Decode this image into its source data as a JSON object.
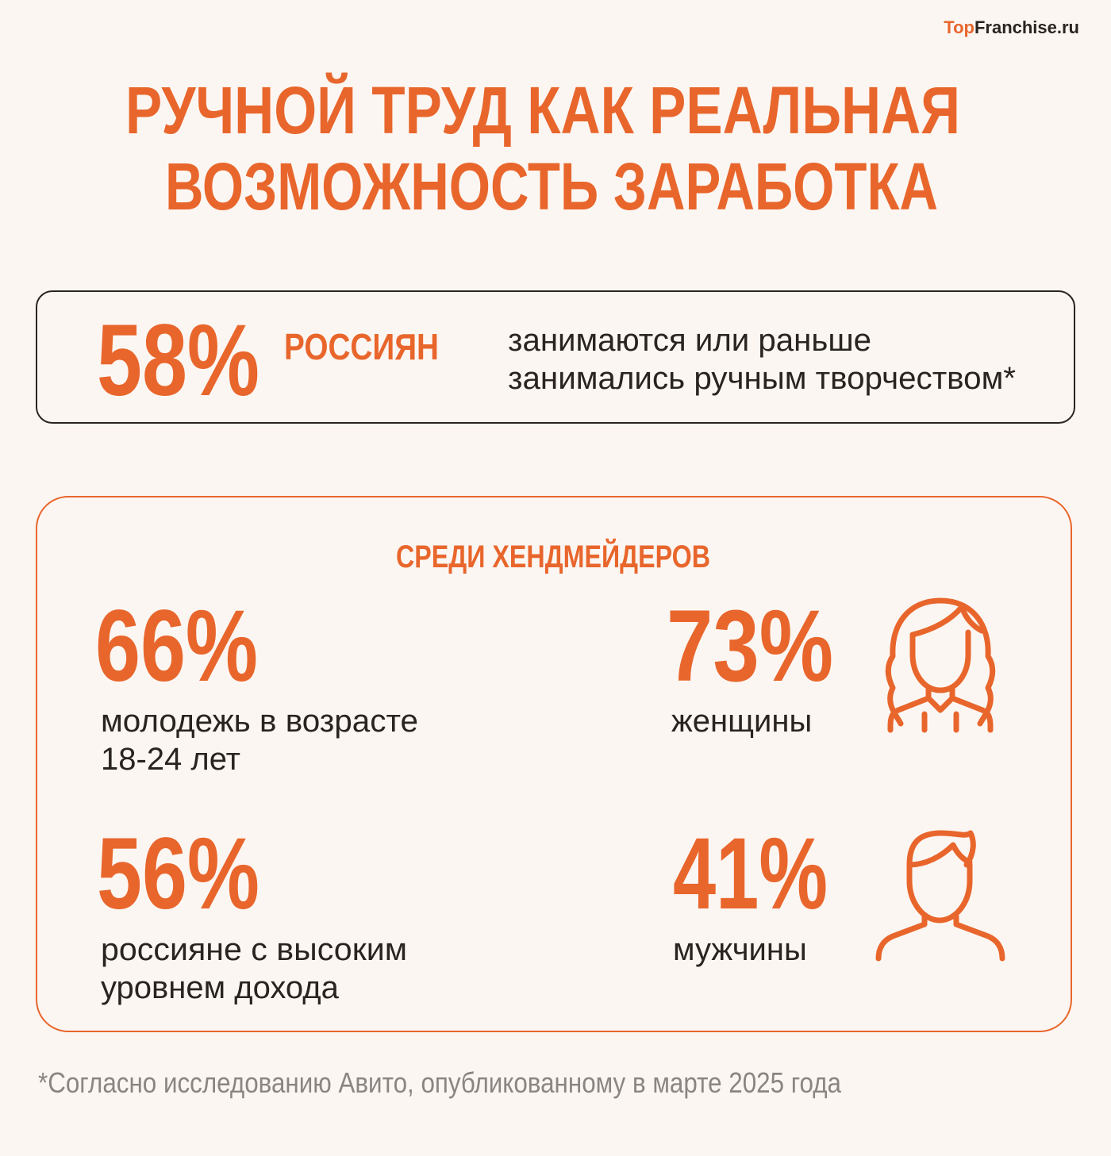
{
  "logo": {
    "accent": "Top",
    "rest": "Franchise.ru"
  },
  "title": {
    "line1": "РУЧНОЙ ТРУД КАК РЕАЛЬНАЯ",
    "line2": "ВОЗМОЖНОСТЬ ЗАРАБОТКА"
  },
  "headline": {
    "value": "58%",
    "subject": "РОССИЯН",
    "description": [
      "занимаются или раньше",
      "занимались ручным творчеством*"
    ]
  },
  "section": {
    "title": "СРЕДИ ХЕНДМЕЙДЕРОВ",
    "stats": [
      {
        "value": "66%",
        "description": [
          "молодежь в возрасте",
          "18-24 лет"
        ]
      },
      {
        "value": "73%",
        "description": [
          "женщины"
        ]
      },
      {
        "value": "56%",
        "description": [
          "россияне с высоким",
          "уровнем дохода"
        ]
      },
      {
        "value": "41%",
        "description": [
          "мужчины"
        ]
      }
    ]
  },
  "footnote": "*Согласно исследованию Авито, опубликованному в марте 2025 года"
}
